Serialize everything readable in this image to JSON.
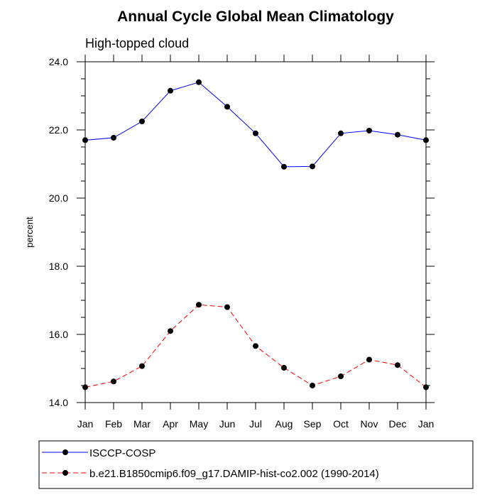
{
  "chart_data": {
    "type": "line",
    "title": "Annual Cycle Global Mean Climatology",
    "subtitle": "High-topped cloud",
    "xlabel": "",
    "ylabel": "percent",
    "categories": [
      "Jan",
      "Feb",
      "Mar",
      "Apr",
      "May",
      "Jun",
      "Jul",
      "Aug",
      "Sep",
      "Oct",
      "Nov",
      "Dec",
      "Jan"
    ],
    "ylim": [
      14.0,
      24.0
    ],
    "yticks": [
      14.0,
      16.0,
      18.0,
      20.0,
      22.0,
      24.0
    ],
    "ytick_labels": [
      "14.0",
      "16.0",
      "18.0",
      "20.0",
      "22.0",
      "24.0"
    ],
    "grid": false,
    "legend_position": "bottom",
    "series": [
      {
        "name": "ISCCP-COSP",
        "color": "#0000ff",
        "dashed": false,
        "values": [
          21.7,
          21.77,
          22.25,
          23.15,
          23.4,
          22.68,
          21.9,
          20.92,
          20.93,
          21.9,
          21.98,
          21.86,
          21.7
        ]
      },
      {
        "name": "b.e21.B1850cmip6.f09_g17.DAMIP-hist-co2.002 (1990-2014)",
        "color": "#ff0000",
        "dashed": true,
        "values": [
          14.45,
          14.62,
          15.07,
          16.1,
          16.87,
          16.8,
          15.66,
          15.02,
          14.5,
          14.77,
          15.26,
          15.1,
          14.45
        ]
      }
    ]
  }
}
